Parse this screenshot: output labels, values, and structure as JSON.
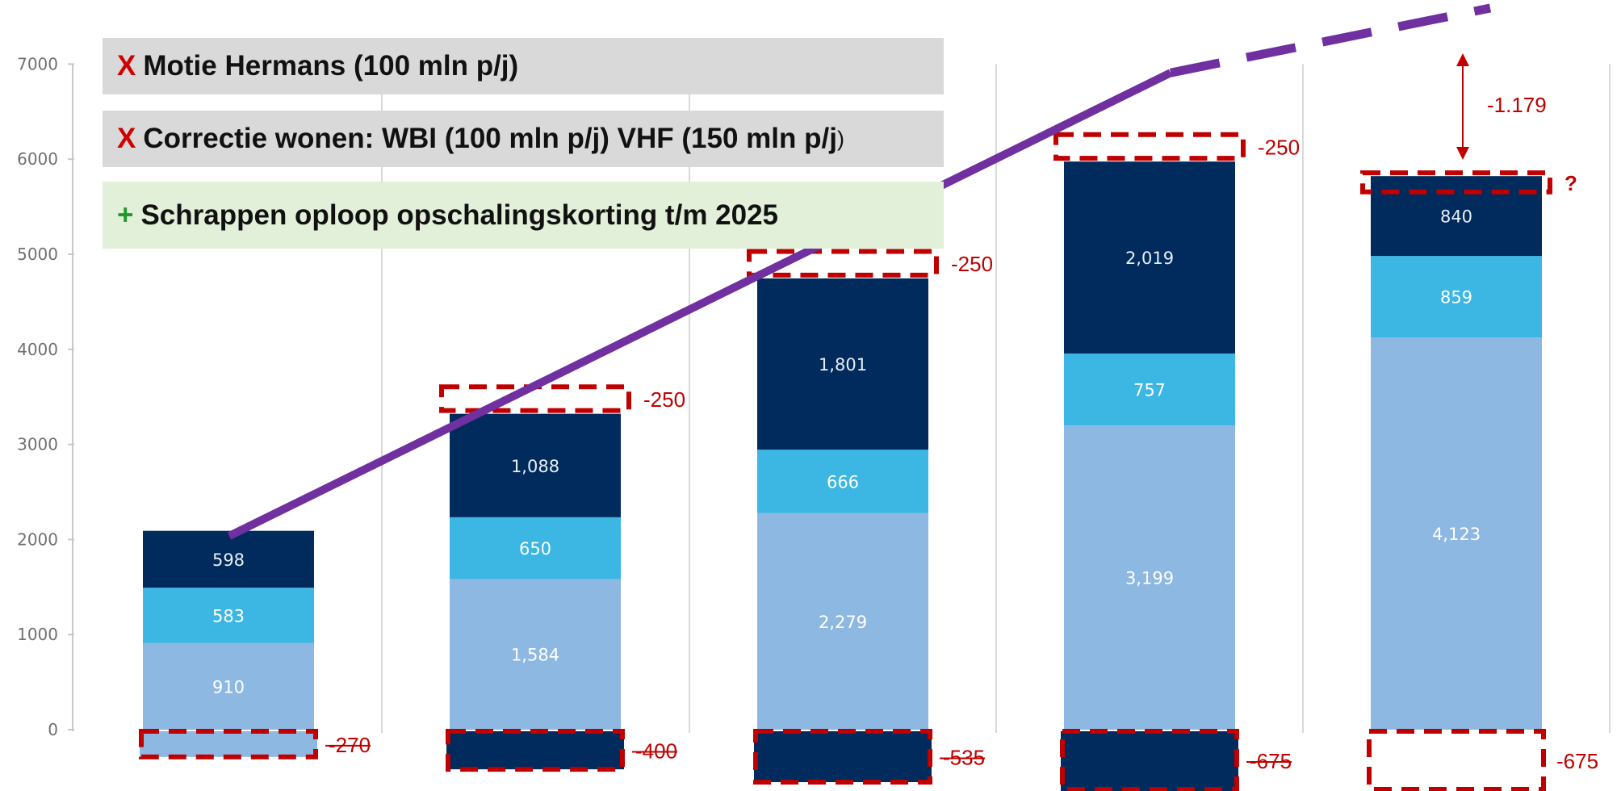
{
  "callouts": [
    {
      "mark": "X",
      "text": "Motie Hermans (100 mln p/j)",
      "tail": "",
      "mark_color": "#d00000",
      "background": "#d9d9d9"
    },
    {
      "mark": "X",
      "text": "Correctie wonen: WBI (100 mln p/j) VHF (150 mln p/j",
      "tail": ")",
      "mark_color": "#d00000",
      "background": "#d9d9d9"
    },
    {
      "mark": "+",
      "text": "Schrappen oploop opschalingskorting t/m 2025",
      "tail": "",
      "mark_color": "#1f9a2a",
      "background": "#e2efd9"
    }
  ],
  "chart_data": {
    "type": "bar",
    "stacked": true,
    "categories": [
      "",
      "",
      "",
      "",
      ""
    ],
    "ylim": [
      0,
      7000
    ],
    "yticks": [
      "0",
      "1000",
      "2000",
      "3000",
      "4000",
      "5000",
      "6000",
      "7000"
    ],
    "grid": "vertical separators between bars",
    "series": [
      {
        "values": [
          910,
          1584,
          2279,
          3199,
          4123
        ],
        "labels": [
          "910",
          "1,584",
          "2,279",
          "3,199",
          "4,123"
        ],
        "color": "#8db8e2"
      },
      {
        "values": [
          583,
          650,
          666,
          757,
          859
        ],
        "labels": [
          "583",
          "650",
          "666",
          "757",
          "859"
        ],
        "color": "#3cb6e3"
      },
      {
        "values": [
          598,
          1088,
          1801,
          2019,
          840
        ],
        "labels": [
          "598",
          "1,088",
          "1,801",
          "2,019",
          "840"
        ],
        "color": "#002b5c"
      }
    ],
    "top_adjustments": [
      {
        "value": 0,
        "label": ""
      },
      {
        "value": -250,
        "label": "-250"
      },
      {
        "value": -250,
        "label": "-250"
      },
      {
        "value": -250,
        "label": "-250"
      },
      {
        "value": -100,
        "label": "?"
      }
    ],
    "bottom_adjustments": [
      {
        "value": -270,
        "label": "-270",
        "struck": true,
        "fill": "#8db8e2"
      },
      {
        "value": -400,
        "label": "-400",
        "struck": true,
        "fill": "#002b5c"
      },
      {
        "value": -535,
        "label": "-535",
        "struck": true,
        "fill": "#002b5c"
      },
      {
        "value": -675,
        "label": "-675",
        "struck": true,
        "fill": "#002b5c"
      },
      {
        "value": -675,
        "label": "-675",
        "struck": false,
        "fill": "none"
      }
    ],
    "trend_line": {
      "color": "#7030a0",
      "points": [
        [
          0,
          2091
        ],
        [
          3.5,
          7650
        ]
      ]
    },
    "gap_annotation": {
      "label": "-1.179",
      "from": 7000,
      "to": 5822
    }
  },
  "colors": {
    "dashed_outline": "#c00000",
    "annotation_text": "#c00000",
    "axis_text": "#707070",
    "segment_label_light": "#ffffff",
    "segment_label_dark_bar": "#e8eef5"
  }
}
